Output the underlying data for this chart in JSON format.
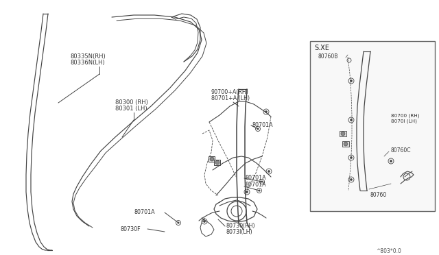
{
  "bg_color": "#ffffff",
  "line_color": "#444444",
  "footer": "^803*0.0",
  "label_80335N": "80335N(RH)",
  "label_80336N": "80336N(LH)",
  "label_80300": "80300 (RH)",
  "label_80301": "80301 (LH)",
  "label_80701A": "80701A",
  "label_90700A": "90700+A(RH)",
  "label_80701A2": "80701+A (LH)",
  "label_80730": "80730(RH)",
  "label_80731": "8073l(LH)",
  "label_80730F": "80730F",
  "inset_label": "S.XE",
  "label_80760B": "80760B",
  "label_80700": "80700 (RH)",
  "label_80701": "8070l (LH)",
  "label_80760C": "80760C",
  "label_80760": "80760"
}
